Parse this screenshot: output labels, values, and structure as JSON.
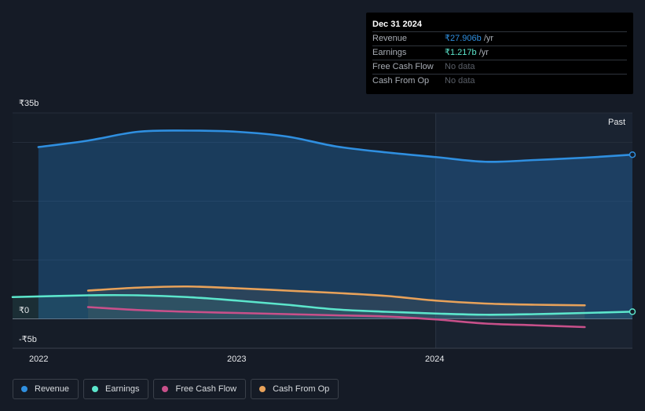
{
  "tooltip": {
    "date": "Dec 31 2024",
    "rows": [
      {
        "label": "Revenue",
        "value": "₹27.906b",
        "unit": " /yr",
        "color": "#2f8fe0"
      },
      {
        "label": "Earnings",
        "value": "₹1.217b",
        "unit": " /yr",
        "color": "#5ce6cc"
      },
      {
        "label": "Free Cash Flow",
        "value": "No data",
        "unit": "",
        "color": "#5a5f68"
      },
      {
        "label": "Cash From Op",
        "value": "No data",
        "unit": "",
        "color": "#5a5f68"
      }
    ]
  },
  "past_label": "Past",
  "legend": [
    {
      "label": "Revenue",
      "color": "#2f8fe0"
    },
    {
      "label": "Earnings",
      "color": "#5ce6cc"
    },
    {
      "label": "Free Cash Flow",
      "color": "#c8508a"
    },
    {
      "label": "Cash From Op",
      "color": "#e8a25a"
    }
  ],
  "chart_data": {
    "type": "line",
    "ylim": [
      -5,
      35
    ],
    "y_ticks": [
      {
        "value": 35,
        "label": "₹35b"
      },
      {
        "value": 0,
        "label": "₹0"
      },
      {
        "value": -5,
        "label": "-₹5b"
      }
    ],
    "x_ticks": [
      {
        "value": 2022.0,
        "label": "2022"
      },
      {
        "value": 2023.0,
        "label": "2023"
      },
      {
        "value": 2024.0,
        "label": "2024"
      }
    ],
    "xlim": [
      2021.87,
      2024.99
    ],
    "past_start": 2024.0,
    "series": [
      {
        "name": "Revenue",
        "color": "#2f8fe0",
        "x": [
          2022.0,
          2022.25,
          2022.5,
          2022.75,
          2023.0,
          2023.25,
          2023.5,
          2023.75,
          2024.0,
          2024.25,
          2024.5,
          2024.75,
          2024.99
        ],
        "y": [
          29.2,
          30.3,
          31.8,
          32.0,
          31.8,
          31.0,
          29.3,
          28.3,
          27.5,
          26.7,
          27.0,
          27.4,
          27.906
        ]
      },
      {
        "name": "Earnings",
        "color": "#5ce6cc",
        "x": [
          2021.87,
          2022.25,
          2022.5,
          2022.75,
          2023.0,
          2023.25,
          2023.5,
          2023.75,
          2024.0,
          2024.25,
          2024.5,
          2024.75,
          2024.99
        ],
        "y": [
          3.7,
          4.0,
          4.0,
          3.7,
          3.1,
          2.4,
          1.6,
          1.2,
          0.9,
          0.7,
          0.8,
          1.0,
          1.217
        ]
      },
      {
        "name": "Free Cash Flow",
        "color": "#c8508a",
        "x": [
          2022.25,
          2022.5,
          2022.75,
          2023.0,
          2023.25,
          2023.5,
          2023.75,
          2024.0,
          2024.25,
          2024.5,
          2024.75
        ],
        "y": [
          2.0,
          1.5,
          1.2,
          1.0,
          0.8,
          0.6,
          0.4,
          -0.1,
          -0.8,
          -1.1,
          -1.4
        ]
      },
      {
        "name": "Cash From Op",
        "color": "#e8a25a",
        "x": [
          2022.25,
          2022.5,
          2022.75,
          2023.0,
          2023.25,
          2023.5,
          2023.75,
          2024.0,
          2024.25,
          2024.5,
          2024.75
        ],
        "y": [
          4.8,
          5.3,
          5.5,
          5.2,
          4.8,
          4.4,
          3.9,
          3.1,
          2.6,
          2.4,
          2.3
        ]
      }
    ]
  }
}
